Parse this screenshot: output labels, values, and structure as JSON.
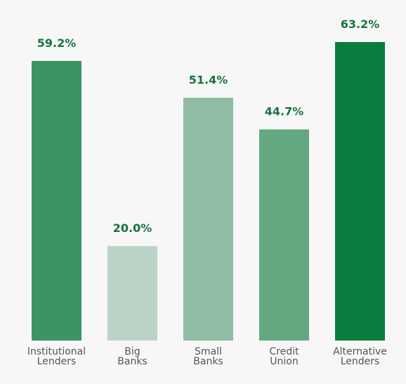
{
  "chart_data": {
    "type": "bar",
    "categories": [
      [
        "Institutional",
        "Lenders"
      ],
      [
        "Big",
        "Banks"
      ],
      [
        "Small",
        "Banks"
      ],
      [
        "Credit",
        "Union"
      ],
      [
        "Alternative",
        "Lenders"
      ]
    ],
    "values": [
      59.2,
      20.0,
      51.4,
      44.7,
      63.2
    ],
    "value_labels": [
      "59.2%",
      "20.0%",
      "51.4%",
      "44.7%",
      "63.2%"
    ],
    "bar_colors": [
      "#3b9463",
      "#bcd4c8",
      "#8fbca2",
      "#64a882",
      "#0a7d3e"
    ],
    "label_color": "#17733f",
    "ylim": [
      0,
      63.2
    ],
    "grid": false,
    "legend": "none"
  }
}
